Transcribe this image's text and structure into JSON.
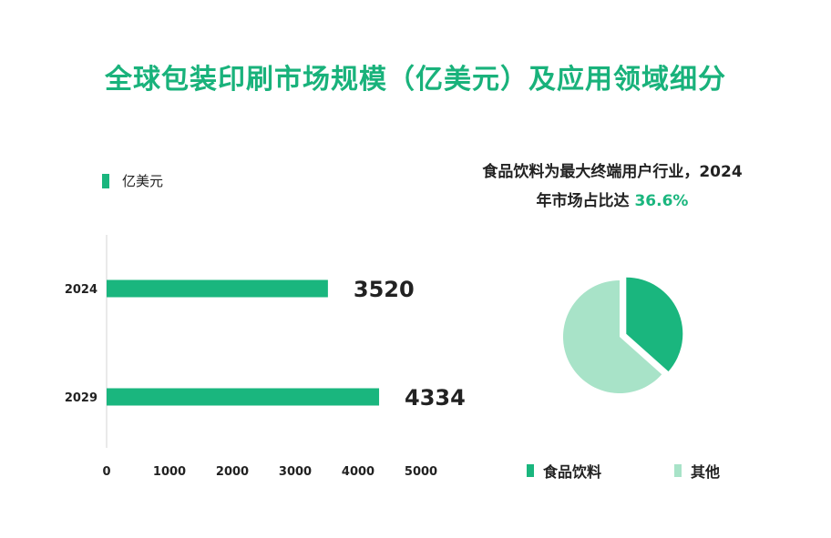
{
  "title": "全球包装印刷市场规模（亿美元）及应用领域细分",
  "colors": {
    "primary": "#1ab67e",
    "light": "#a8e3c8",
    "title": "#19b27b"
  },
  "chart_data": [
    {
      "type": "bar",
      "orientation": "horizontal",
      "legend": "亿美元",
      "categories": [
        "2024",
        "2029"
      ],
      "values": [
        3520,
        4334
      ],
      "value_labels": [
        "3520",
        "4334"
      ],
      "xlim": [
        0,
        5000
      ],
      "xticks": [
        "0",
        "1000",
        "2000",
        "3000",
        "4000",
        "5000"
      ]
    },
    {
      "type": "pie",
      "note_prefix": "食品饮料为最大终端用户行业，2024",
      "note_middle": "年市场占比达 ",
      "note_value": "36.6%",
      "slices": [
        {
          "label": "食品饮料",
          "value": 36.6,
          "color": "#1ab67e"
        },
        {
          "label": "其他",
          "value": 63.4,
          "color": "#a8e3c8"
        }
      ]
    }
  ]
}
